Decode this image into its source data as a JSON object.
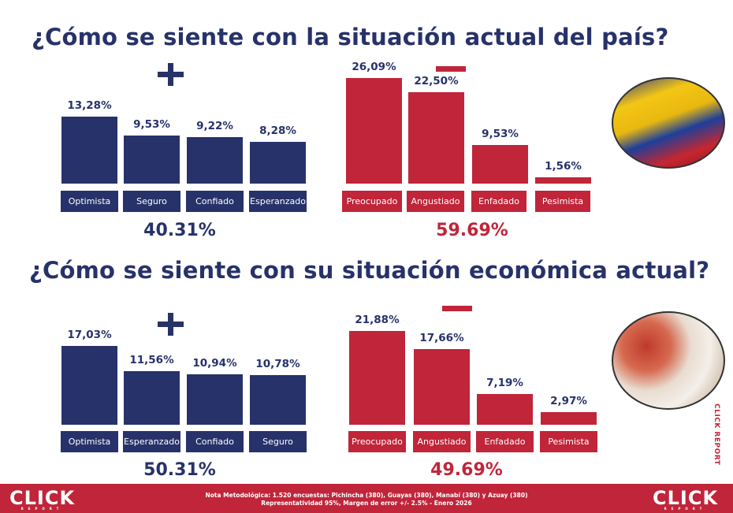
{
  "colors": {
    "positive": "#27326a",
    "negative": "#c0253a"
  },
  "sections": [
    {
      "title": "¿Cómo se siente con la situación actual del país?",
      "positive": {
        "sign": "+",
        "total": "40.31%",
        "items": [
          {
            "label": "Optimista",
            "value": 13.28,
            "text": "13,28%"
          },
          {
            "label": "Seguro",
            "value": 9.53,
            "text": "9,53%"
          },
          {
            "label": "Confiado",
            "value": 9.22,
            "text": "9,22%"
          },
          {
            "label": "Esperanzado",
            "value": 8.28,
            "text": "8,28%"
          }
        ]
      },
      "negative": {
        "sign": "−",
        "total": "59.69%",
        "items": [
          {
            "label": "Preocupado",
            "value": 26.09,
            "text": "26,09%"
          },
          {
            "label": "Angustiado",
            "value": 22.5,
            "text": "22,50%"
          },
          {
            "label": "Enfadado",
            "value": 9.53,
            "text": "9,53%"
          },
          {
            "label": "Pesimista",
            "value": 1.56,
            "text": "1,56%"
          }
        ]
      },
      "image": "ecuador-flag-photo"
    },
    {
      "title": "¿Cómo se siente con su situación económica actual?",
      "positive": {
        "sign": "+",
        "total": "50.31%",
        "items": [
          {
            "label": "Optimista",
            "value": 17.03,
            "text": "17,03%"
          },
          {
            "label": "Esperanzado",
            "value": 11.56,
            "text": "11,56%"
          },
          {
            "label": "Confiado",
            "value": 10.94,
            "text": "10,94%"
          },
          {
            "label": "Seguro",
            "value": 10.78,
            "text": "10,78%"
          }
        ]
      },
      "negative": {
        "sign": "−",
        "total": "49.69%",
        "items": [
          {
            "label": "Preocupado",
            "value": 21.88,
            "text": "21,88%"
          },
          {
            "label": "Angustiado",
            "value": 17.66,
            "text": "17,66%"
          },
          {
            "label": "Enfadado",
            "value": 7.19,
            "text": "7,19%"
          },
          {
            "label": "Pesimista",
            "value": 2.97,
            "text": "2,97%"
          }
        ]
      },
      "image": "coins-in-hand-photo"
    }
  ],
  "side_text": "CLICK REPORT",
  "footer": {
    "logo": "CLICK",
    "logo_sub": "REPORT",
    "note_line1": "Nota Metodológica: 1.520 encuestas: Pichincha (380), Guayas (380), Manabí (380) y Azuay (380)",
    "note_line2": "Representatividad 95%, Margen de error +/- 2.5% - Enero 2026"
  }
}
